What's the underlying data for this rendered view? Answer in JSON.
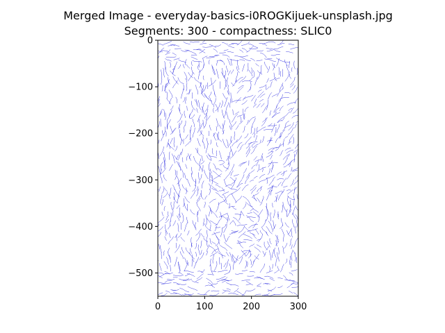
{
  "chart_data": {
    "type": "image",
    "title": "Merged Image - everyday-basics-i0ROGKijuek-unsplash.jpg",
    "subtitle": "Segments: 300 - compactness: SLIC0",
    "xlim": [
      0,
      300
    ],
    "ylim": [
      550,
      0
    ],
    "xticks": [
      0,
      100,
      200,
      300
    ],
    "xtick_labels": [
      "0",
      "100",
      "200",
      "300"
    ],
    "yticks": [
      0,
      100,
      200,
      300,
      400,
      500
    ],
    "ytick_labels": [
      "0",
      "−100",
      "−200",
      "−300",
      "−400",
      "−500"
    ],
    "boundary_color": "#2222dd",
    "background_color": "#ffffff"
  }
}
